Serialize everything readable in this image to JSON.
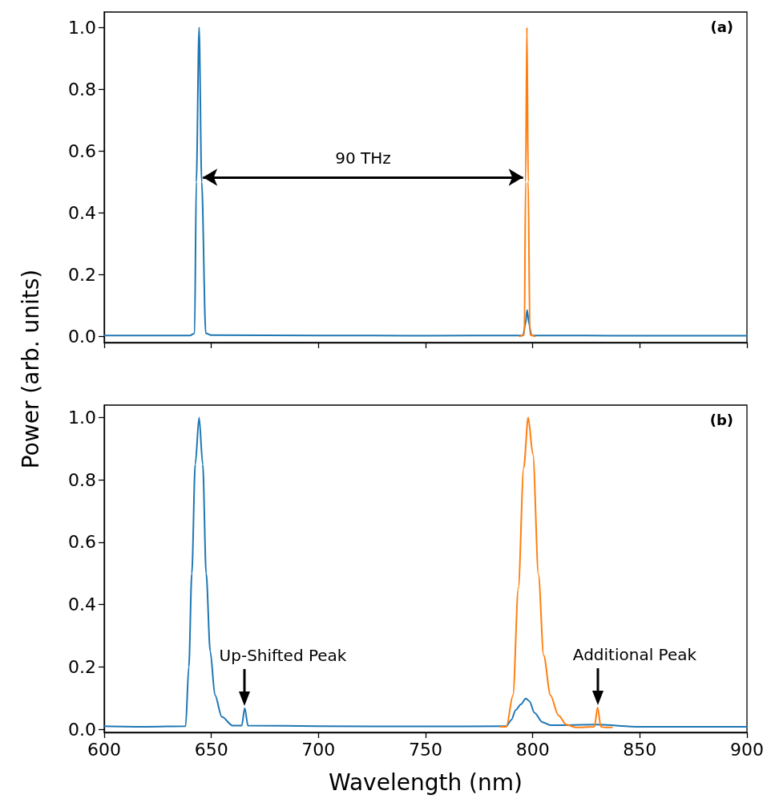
{
  "chart_data": [
    {
      "type": "line",
      "title": "(a)",
      "ylabel": "Power (arb. units)",
      "annotations": [
        "90 THz"
      ],
      "xlim": [
        600,
        900
      ],
      "xticks": [
        600,
        650,
        700,
        750,
        800,
        850,
        900
      ],
      "ylim": [
        -0.02,
        1.05
      ],
      "yticks": [
        {
          "value": 0,
          "label": "0.0"
        },
        {
          "value": 0.2,
          "label": "0.2"
        },
        {
          "value": 0.4,
          "label": "0.4"
        },
        {
          "value": 0.6,
          "label": "0.6"
        },
        {
          "value": 0.8,
          "label": "0.8"
        },
        {
          "value": 1,
          "label": "1.0"
        }
      ],
      "tick_labels": "y",
      "grid": false,
      "marker": "none",
      "line_style": "solid",
      "series": [
        {
          "color": "#1f77b4",
          "x": [
            600,
            640,
            642.2,
            643.0,
            644.3,
            645.5,
            647.4,
            650,
            700,
            750,
            795.5,
            796.6,
            797.4,
            798.3,
            799.4,
            850,
            900
          ],
          "values": [
            0.003,
            0.003,
            0.01,
            0.5,
            1.0,
            0.5,
            0.01,
            0.004,
            0.003,
            0.002,
            0.003,
            0.04,
            0.085,
            0.04,
            0.003,
            0.002,
            0.002
          ]
        },
        {
          "color": "#ff7f0e",
          "x": [
            794,
            796.1,
            796.7,
            797.3,
            797.9,
            798.7,
            801
          ],
          "values": [
            0,
            0.005,
            0.5,
            1.0,
            0.5,
            0.005,
            0
          ]
        }
      ]
    },
    {
      "type": "line",
      "title": "(b)",
      "xlabel": "Wavelength (nm)",
      "annotations": [
        {
          "text": "Up-Shifted Peak",
          "x": 665.6,
          "y": 0.068
        },
        {
          "text": "Additional Peak",
          "x": 830.3,
          "y": 0.07
        }
      ],
      "xlim": [
        600,
        900
      ],
      "xticks": [
        600,
        650,
        700,
        750,
        800,
        850,
        900
      ],
      "ylim": [
        -0.01,
        1.04
      ],
      "yticks": [
        {
          "value": 0,
          "label": "0.0"
        },
        {
          "value": 0.2,
          "label": "0.2"
        },
        {
          "value": 0.4,
          "label": "0.4"
        },
        {
          "value": 0.6,
          "label": "0.6"
        },
        {
          "value": 0.8,
          "label": "0.8"
        },
        {
          "value": 1,
          "label": "1.0"
        }
      ],
      "grid": false,
      "marker": "none",
      "line_style": "solid",
      "series": [
        {
          "color": "#1f77b4",
          "x": [
            600,
            620,
            638,
            639.5,
            640.9,
            642.5,
            644.3,
            646,
            647.6,
            649.5,
            651.7,
            654.9,
            659.9,
            664.2,
            665.6,
            667.1,
            700,
            750,
            787.7,
            790,
            792.1,
            794.5,
            796.8,
            798.5,
            800.8,
            804.5,
            808.3,
            830,
            850,
            900
          ],
          "values": [
            0.01,
            0.008,
            0.01,
            0.2,
            0.5,
            0.85,
            1.0,
            0.85,
            0.5,
            0.25,
            0.11,
            0.04,
            0.012,
            0.012,
            0.068,
            0.012,
            0.01,
            0.009,
            0.01,
            0.03,
            0.062,
            0.08,
            0.099,
            0.09,
            0.053,
            0.023,
            0.013,
            0.015,
            0.008,
            0.008
          ]
        },
        {
          "color": "#ff7f0e",
          "x": [
            785,
            787.7,
            790.8,
            793.3,
            795.8,
            797.9,
            800.1,
            802.7,
            805.1,
            808.3,
            812,
            815.7,
            820,
            828.8,
            830.3,
            831.8,
            833.8,
            837
          ],
          "values": [
            0.008,
            0.008,
            0.109,
            0.453,
            0.839,
            1.0,
            0.882,
            0.496,
            0.238,
            0.109,
            0.045,
            0.015,
            0.006,
            0.008,
            0.07,
            0.008,
            0.006,
            0.006
          ]
        }
      ]
    }
  ]
}
